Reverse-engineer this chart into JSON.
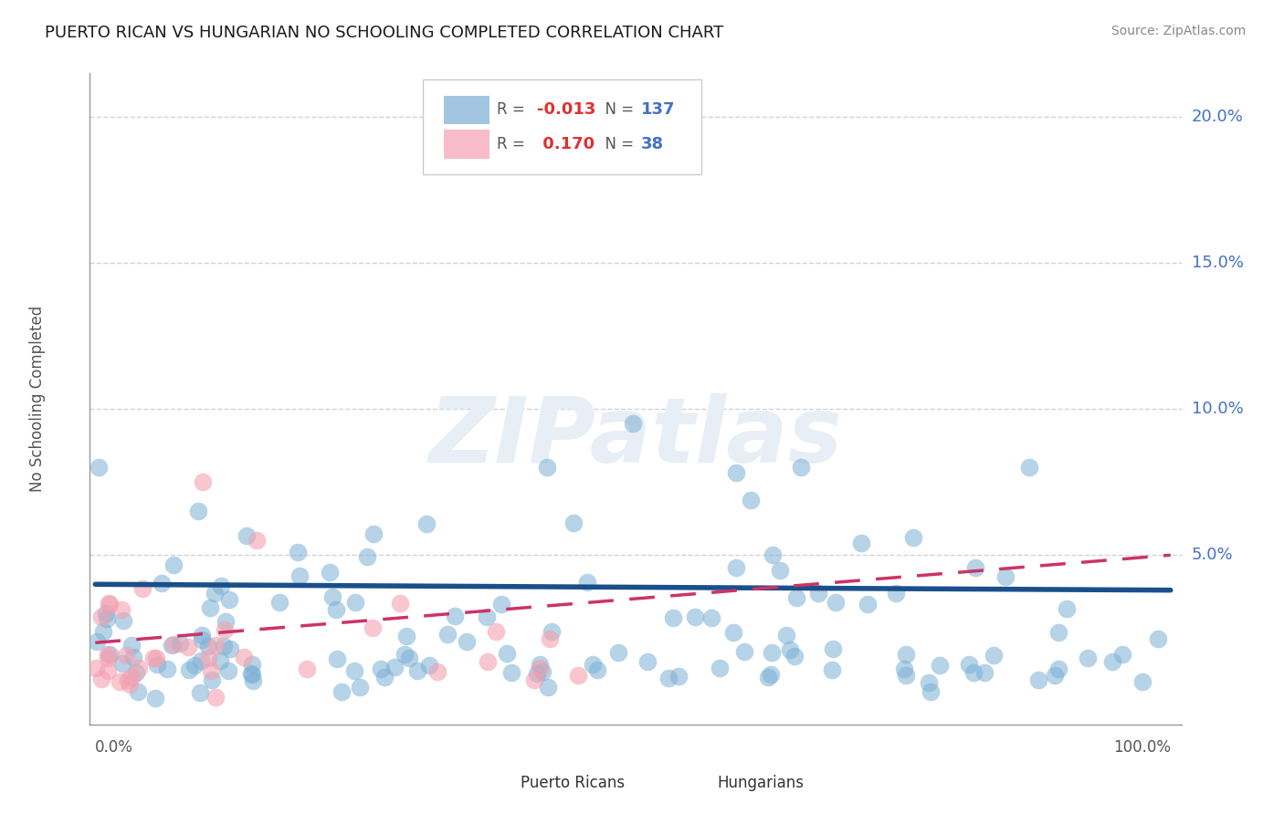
{
  "title": "PUERTO RICAN VS HUNGARIAN NO SCHOOLING COMPLETED CORRELATION CHART",
  "source": "Source: ZipAtlas.com",
  "ylabel": "No Schooling Completed",
  "legend_label1": "Puerto Ricans",
  "legend_label2": "Hungarians",
  "r_pr": -0.013,
  "n_pr": 137,
  "r_hu": 0.17,
  "n_hu": 38,
  "color_pr": "#7BAFD4",
  "color_hu": "#F4A0B0",
  "trendline_pr_color": "#1a4f8a",
  "trendline_hu_color": "#cc3366",
  "watermark_color": "#e8eef5",
  "watermark_text": "ZIPatlas",
  "background_color": "#FFFFFF",
  "grid_color": "#ccccdd",
  "ytick_color": "#4472C4",
  "axis_color": "#999999",
  "text_color": "#555555",
  "source_color": "#888888"
}
